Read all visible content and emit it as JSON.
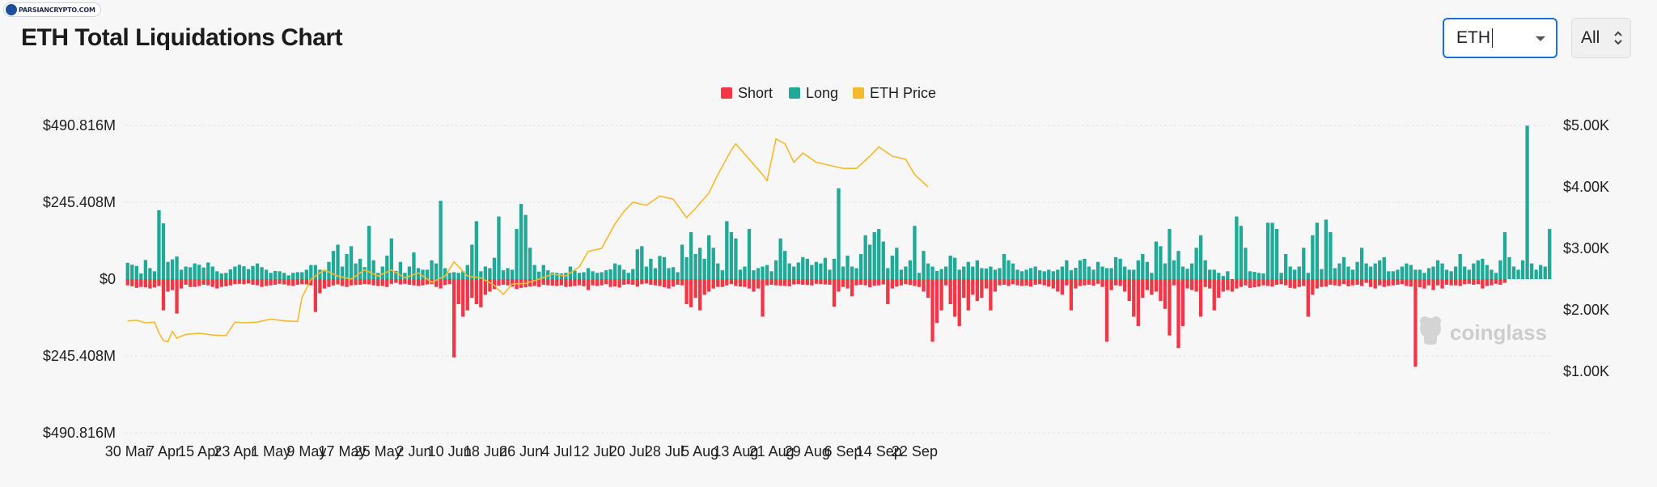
{
  "watermark": {
    "text": "PARSIANCRYPTO.COM"
  },
  "header": {
    "title": "ETH Total Liquidations Chart"
  },
  "controls": {
    "coin": {
      "value": "ETH"
    },
    "range": {
      "value": "All"
    }
  },
  "branding": {
    "chart_logo": "coinglass"
  },
  "colors": {
    "short": "#f23645",
    "long": "#20a997",
    "price": "#f3ba2f"
  },
  "chart_data": {
    "type": "bar",
    "title": "ETH Total Liquidations Chart",
    "legend": [
      "Short",
      "Long",
      "ETH Price"
    ],
    "legend_position": "top-center",
    "grid": true,
    "xlabel": "",
    "ylabel": "",
    "y_left": {
      "min": -490.816,
      "max": 490.816,
      "unit": "$M",
      "ticks": [
        490.816,
        245.408,
        0,
        -245.408,
        -490.816
      ],
      "tick_labels": [
        "$490.816M",
        "$245.408M",
        "$0",
        "$245.408M",
        "$490.816M"
      ]
    },
    "y_right": {
      "min": 0,
      "max": 5000,
      "unit": "$",
      "ticks": [
        5000,
        4000,
        3000,
        2000,
        1000
      ],
      "tick_labels": [
        "$5.00K",
        "$4.00K",
        "$3.00K",
        "$2.00K",
        "$1.00K"
      ]
    },
    "x_tick_labels": [
      "30 Mar",
      "7 Apr",
      "15 Apr",
      "23 Apr",
      "1 May",
      "9 May",
      "17 May",
      "25 May",
      "2 Jun",
      "10 Jun",
      "18 Jun",
      "26 Jun",
      "4 Jul",
      "12 Jul",
      "20 Jul",
      "28 Jul",
      "5 Aug",
      "13 Aug",
      "21 Aug",
      "29 Aug",
      "6 Sep",
      "14 Sep",
      "22 Sep"
    ],
    "x_start": "2025-03-30",
    "series": [
      {
        "name": "Long",
        "values": [
          52,
          46,
          42,
          18,
          61,
          35,
          25,
          220,
          178,
          55,
          63,
          72,
          30,
          40,
          38,
          50,
          46,
          37,
          53,
          40,
          25,
          18,
          20,
          31,
          40,
          46,
          41,
          32,
          42,
          50,
          38,
          30,
          20,
          26,
          25,
          20,
          12,
          20,
          22,
          22,
          30,
          45,
          45,
          30,
          25,
          55,
          90,
          110,
          40,
          80,
          105,
          50,
          65,
          38,
          170,
          60,
          20,
          40,
          75,
          130,
          26,
          55,
          20,
          40,
          85,
          35,
          30,
          30,
          60,
          50,
          250,
          35,
          20,
          22,
          20,
          25,
          45,
          110,
          185,
          25,
          40,
          35,
          68,
          200,
          28,
          35,
          30,
          160,
          240,
          205,
          100,
          45,
          24,
          45,
          28,
          21,
          20,
          18,
          20,
          40,
          27,
          20,
          22,
          35,
          25,
          20,
          22,
          28,
          31,
          50,
          45,
          30,
          20,
          32,
          95,
          105,
          40,
          65,
          35,
          74,
          70,
          35,
          38,
          22,
          110,
          70,
          150,
          80,
          100,
          65,
          140,
          100,
          50,
          28,
          185,
          150,
          130,
          30,
          40,
          160,
          28,
          35,
          40,
          45,
          25,
          60,
          130,
          90,
          50,
          40,
          53,
          70,
          65,
          45,
          55,
          50,
          68,
          30,
          65,
          290,
          40,
          75,
          40,
          35,
          80,
          140,
          110,
          150,
          160,
          120,
          35,
          75,
          100,
          30,
          40,
          60,
          170,
          20,
          90,
          50,
          40,
          26,
          32,
          40,
          75,
          68,
          30,
          40,
          55,
          40,
          60,
          35,
          34,
          40,
          30,
          35,
          80,
          60,
          50,
          30,
          25,
          30,
          35,
          40,
          28,
          25,
          30,
          25,
          30,
          40,
          60,
          28,
          36,
          60,
          65,
          40,
          30,
          55,
          40,
          35,
          35,
          70,
          65,
          40,
          30,
          30,
          60,
          80,
          55,
          20,
          120,
          105,
          50,
          160,
          60,
          90,
          40,
          33,
          50,
          100,
          140,
          60,
          30,
          30,
          20,
          10,
          25,
          0,
          200,
          170,
          100,
          25,
          23,
          20,
          18,
          180,
          180,
          160,
          20,
          80,
          40,
          30,
          40,
          100,
          20,
          140,
          180,
          32,
          190,
          150,
          35,
          50,
          70,
          40,
          30,
          55,
          100,
          50,
          40,
          50,
          60,
          70,
          25,
          25,
          30,
          40,
          50,
          45,
          30,
          30,
          20,
          35,
          40,
          60,
          50,
          30,
          25,
          40,
          80,
          40,
          30,
          50,
          60,
          65,
          45,
          30,
          20,
          60,
          150,
          70,
          40,
          30,
          60,
          490,
          50,
          30,
          45,
          40,
          160
        ],
        "values_note": "Long liquidations per day, $M (positive)"
      },
      {
        "name": "Short",
        "values": [
          -20,
          -23,
          -28,
          -25,
          -26,
          -30,
          -27,
          -22,
          -100,
          -40,
          -35,
          -110,
          -30,
          -18,
          -25,
          -25,
          -22,
          -18,
          -20,
          -25,
          -30,
          -25,
          -23,
          -20,
          -16,
          -15,
          -16,
          -14,
          -18,
          -20,
          -25,
          -22,
          -20,
          -18,
          -15,
          -17,
          -20,
          -22,
          -18,
          -16,
          -17,
          -20,
          -105,
          -45,
          -30,
          -25,
          -20,
          -17,
          -22,
          -25,
          -20,
          -19,
          -18,
          -16,
          -17,
          -20,
          -22,
          -22,
          -25,
          -15,
          -12,
          -17,
          -15,
          -18,
          -20,
          -22,
          -20,
          -17,
          -16,
          -25,
          -30,
          -19,
          -16,
          -250,
          -80,
          -120,
          -100,
          -60,
          -80,
          -90,
          -50,
          -40,
          -32,
          -21,
          -18,
          -20,
          -24,
          -32,
          -28,
          -26,
          -24,
          -22,
          -25,
          -18,
          -20,
          -21,
          -22,
          -20,
          -25,
          -24,
          -22,
          -20,
          -23,
          -35,
          -20,
          -22,
          -20,
          -16,
          -25,
          -24,
          -27,
          -18,
          -16,
          -18,
          -24,
          -16,
          -14,
          -18,
          -20,
          -22,
          -26,
          -30,
          -24,
          -18,
          -20,
          -80,
          -90,
          -60,
          -100,
          -50,
          -40,
          -30,
          -25,
          -25,
          -20,
          -16,
          -22,
          -24,
          -25,
          -30,
          -40,
          -30,
          -120,
          -20,
          -18,
          -20,
          -21,
          -22,
          -23,
          -17,
          -16,
          -18,
          -19,
          -20,
          -15,
          -16,
          -17,
          -18,
          -88,
          -40,
          -25,
          -30,
          -55,
          -20,
          -18,
          -20,
          -26,
          -21,
          -20,
          -17,
          -80,
          -30,
          -24,
          -20,
          -16,
          -19,
          -22,
          -25,
          -40,
          -60,
          -200,
          -140,
          -100,
          -20,
          -80,
          -120,
          -150,
          -60,
          -100,
          -50,
          -70,
          -60,
          -30,
          -100,
          -40,
          -20,
          -18,
          -22,
          -16,
          -20,
          -22,
          -21,
          -24,
          -18,
          -16,
          -20,
          -24,
          -30,
          -40,
          -50,
          -20,
          -100,
          -30,
          -22,
          -20,
          -18,
          -21,
          -15,
          -25,
          -200,
          -35,
          -20,
          -22,
          -40,
          -70,
          -120,
          -150,
          -60,
          -35,
          -50,
          -40,
          -70,
          -95,
          -180,
          -20,
          -220,
          -150,
          -30,
          -35,
          -40,
          -120,
          -25,
          -30,
          -100,
          -60,
          -40,
          -35,
          -40,
          -30,
          -25,
          -20,
          -28,
          -26,
          -24,
          -20,
          -22,
          -24,
          -18,
          -16,
          -20,
          -28,
          -30,
          -25,
          -22,
          -120,
          -50,
          -30,
          -25,
          -24,
          -18,
          -20,
          -22,
          -16,
          -23,
          -20,
          -18,
          -22,
          -12,
          -25,
          -30,
          -20,
          -25,
          -22,
          -20,
          -18,
          -16,
          -22,
          -24,
          -280,
          -26,
          -30,
          -20,
          -35,
          -20,
          -30,
          -18,
          -20,
          -20,
          -22,
          -16,
          -15,
          -18,
          -16,
          -30,
          -22,
          -20,
          -15,
          -18,
          -12
        ],
        "values_note": "Short liquidations per day, $M (negative)"
      },
      {
        "name": "ETH Price",
        "axis": "right",
        "points": [
          [
            "2025-03-30",
            1820
          ],
          [
            "2025-04-01",
            1830
          ],
          [
            "2025-04-03",
            1790
          ],
          [
            "2025-04-05",
            1800
          ],
          [
            "2025-04-06",
            1630
          ],
          [
            "2025-04-07",
            1500
          ],
          [
            "2025-04-08",
            1480
          ],
          [
            "2025-04-09",
            1650
          ],
          [
            "2025-04-10",
            1540
          ],
          [
            "2025-04-12",
            1600
          ],
          [
            "2025-04-15",
            1620
          ],
          [
            "2025-04-18",
            1590
          ],
          [
            "2025-04-21",
            1580
          ],
          [
            "2025-04-23",
            1800
          ],
          [
            "2025-04-25",
            1790
          ],
          [
            "2025-04-28",
            1800
          ],
          [
            "2025-05-01",
            1850
          ],
          [
            "2025-05-04",
            1820
          ],
          [
            "2025-05-07",
            1810
          ],
          [
            "2025-05-08",
            2200
          ],
          [
            "2025-05-10",
            2500
          ],
          [
            "2025-05-13",
            2650
          ],
          [
            "2025-05-16",
            2550
          ],
          [
            "2025-05-19",
            2500
          ],
          [
            "2025-05-22",
            2650
          ],
          [
            "2025-05-25",
            2550
          ],
          [
            "2025-05-28",
            2650
          ],
          [
            "2025-05-31",
            2520
          ],
          [
            "2025-06-03",
            2600
          ],
          [
            "2025-06-06",
            2450
          ],
          [
            "2025-06-09",
            2550
          ],
          [
            "2025-06-11",
            2780
          ],
          [
            "2025-06-14",
            2550
          ],
          [
            "2025-06-17",
            2520
          ],
          [
            "2025-06-20",
            2400
          ],
          [
            "2025-06-22",
            2250
          ],
          [
            "2025-06-24",
            2420
          ],
          [
            "2025-06-27",
            2430
          ],
          [
            "2025-06-30",
            2500
          ],
          [
            "2025-07-03",
            2580
          ],
          [
            "2025-07-06",
            2550
          ],
          [
            "2025-07-09",
            2700
          ],
          [
            "2025-07-11",
            2950
          ],
          [
            "2025-07-14",
            3000
          ],
          [
            "2025-07-17",
            3400
          ],
          [
            "2025-07-19",
            3600
          ],
          [
            "2025-07-21",
            3750
          ],
          [
            "2025-07-24",
            3700
          ],
          [
            "2025-07-27",
            3850
          ],
          [
            "2025-07-30",
            3800
          ],
          [
            "2025-08-02",
            3500
          ],
          [
            "2025-08-04",
            3650
          ],
          [
            "2025-08-07",
            3900
          ],
          [
            "2025-08-09",
            4200
          ],
          [
            "2025-08-12",
            4600
          ],
          [
            "2025-08-13",
            4700
          ],
          [
            "2025-08-16",
            4450
          ],
          [
            "2025-08-19",
            4200
          ],
          [
            "2025-08-20",
            4100
          ],
          [
            "2025-08-22",
            4780
          ],
          [
            "2025-08-24",
            4700
          ],
          [
            "2025-08-26",
            4400
          ],
          [
            "2025-08-28",
            4550
          ],
          [
            "2025-08-31",
            4400
          ],
          [
            "2025-09-03",
            4350
          ],
          [
            "2025-09-06",
            4300
          ],
          [
            "2025-09-09",
            4300
          ],
          [
            "2025-09-12",
            4500
          ],
          [
            "2025-09-14",
            4650
          ],
          [
            "2025-09-17",
            4500
          ],
          [
            "2025-09-20",
            4450
          ],
          [
            "2025-09-22",
            4200
          ],
          [
            "2025-09-25",
            4000
          ]
        ]
      }
    ]
  }
}
